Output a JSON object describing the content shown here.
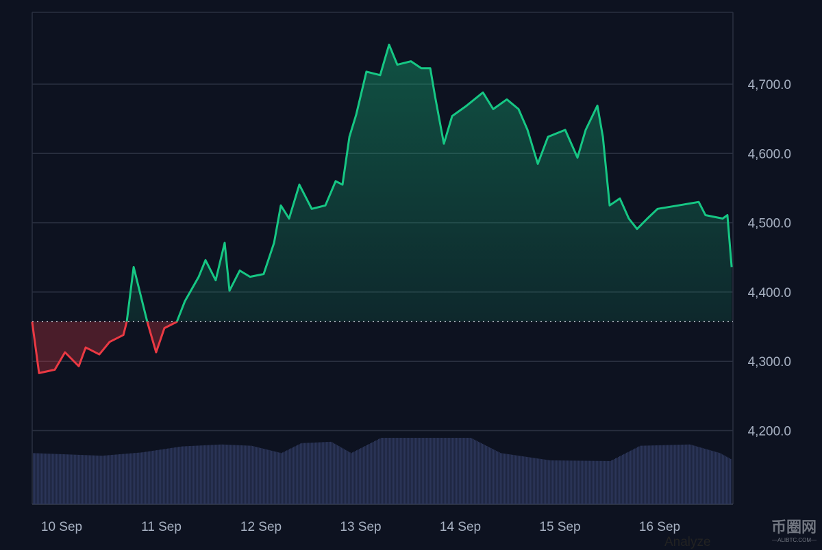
{
  "chart_data": {
    "type": "area",
    "title": "",
    "baseline": 4357.5,
    "colors": {
      "up": "#16c784",
      "down": "#ea3943",
      "volume": "#2b3558",
      "grid": "#2a3040"
    },
    "x_ticks": [
      {
        "day": 0,
        "label": "10 Sep"
      },
      {
        "day": 1,
        "label": "11 Sep"
      },
      {
        "day": 2,
        "label": "12 Sep"
      },
      {
        "day": 3,
        "label": "13 Sep"
      },
      {
        "day": 4,
        "label": "14 Sep"
      },
      {
        "day": 5,
        "label": "15 Sep"
      },
      {
        "day": 6,
        "label": "16 Sep"
      }
    ],
    "y_ticks": [
      {
        "value": 4200,
        "label": "4,200.0"
      },
      {
        "value": 4300,
        "label": "4,300.0"
      },
      {
        "value": 4400,
        "label": "4,400.0"
      },
      {
        "value": 4500,
        "label": "4,500.0"
      },
      {
        "value": 4600,
        "label": "4,600.0"
      },
      {
        "value": 4700,
        "label": "4,700.0"
      }
    ],
    "xlim": [
      -0.296,
      6.735
    ],
    "ylim": [
      4095,
      4810
    ],
    "price": [
      [
        -0.296,
        4357
      ],
      [
        -0.227,
        4283
      ],
      [
        -0.069,
        4288
      ],
      [
        0.034,
        4313
      ],
      [
        0.172,
        4293
      ],
      [
        0.241,
        4320
      ],
      [
        0.378,
        4310
      ],
      [
        0.481,
        4328
      ],
      [
        0.619,
        4338
      ],
      [
        0.653,
        4357
      ],
      [
        0.722,
        4436
      ],
      [
        0.79,
        4397
      ],
      [
        0.859,
        4357
      ],
      [
        0.948,
        4313
      ],
      [
        1.031,
        4348
      ],
      [
        1.155,
        4357
      ],
      [
        1.237,
        4387
      ],
      [
        1.375,
        4422
      ],
      [
        1.443,
        4446
      ],
      [
        1.546,
        4417
      ],
      [
        1.636,
        4471
      ],
      [
        1.684,
        4402
      ],
      [
        1.787,
        4431
      ],
      [
        1.89,
        4422
      ],
      [
        2.027,
        4426
      ],
      [
        2.131,
        4471
      ],
      [
        2.199,
        4525
      ],
      [
        2.282,
        4506
      ],
      [
        2.385,
        4555
      ],
      [
        2.509,
        4520
      ],
      [
        2.646,
        4525
      ],
      [
        2.749,
        4560
      ],
      [
        2.818,
        4555
      ],
      [
        2.887,
        4624
      ],
      [
        2.955,
        4656
      ],
      [
        3.058,
        4718
      ],
      [
        3.196,
        4713
      ],
      [
        3.285,
        4757
      ],
      [
        3.368,
        4728
      ],
      [
        3.505,
        4733
      ],
      [
        3.608,
        4723
      ],
      [
        3.698,
        4723
      ],
      [
        3.746,
        4683
      ],
      [
        3.835,
        4614
      ],
      [
        3.918,
        4654
      ],
      [
        4.055,
        4668
      ],
      [
        4.227,
        4688
      ],
      [
        4.33,
        4664
      ],
      [
        4.467,
        4678
      ],
      [
        4.584,
        4664
      ],
      [
        4.674,
        4634
      ],
      [
        4.777,
        4585
      ],
      [
        4.88,
        4624
      ],
      [
        5.052,
        4634
      ],
      [
        5.175,
        4594
      ],
      [
        5.258,
        4634
      ],
      [
        5.375,
        4669
      ],
      [
        5.43,
        4624
      ],
      [
        5.498,
        4525
      ],
      [
        5.601,
        4535
      ],
      [
        5.691,
        4506
      ],
      [
        5.773,
        4491
      ],
      [
        5.876,
        4506
      ],
      [
        5.979,
        4520
      ],
      [
        6.186,
        4525
      ],
      [
        6.392,
        4530
      ],
      [
        6.46,
        4511
      ],
      [
        6.632,
        4506
      ],
      [
        6.68,
        4511
      ],
      [
        6.722,
        4436
      ]
    ],
    "volume": [
      [
        -0.296,
        77
      ],
      [
        0.4,
        73
      ],
      [
        0.8,
        78
      ],
      [
        1.2,
        87
      ],
      [
        1.6,
        90
      ],
      [
        1.9,
        88
      ],
      [
        2.2,
        77
      ],
      [
        2.4,
        92
      ],
      [
        2.7,
        94
      ],
      [
        2.9,
        77
      ],
      [
        3.2,
        100
      ],
      [
        3.6,
        100
      ],
      [
        4.1,
        100
      ],
      [
        4.4,
        77
      ],
      [
        4.9,
        66
      ],
      [
        5.5,
        65
      ],
      [
        5.8,
        88
      ],
      [
        6.3,
        90
      ],
      [
        6.6,
        77
      ],
      [
        6.722,
        67
      ]
    ]
  },
  "watermark": {
    "name": "币圈网",
    "domain": "—ALIBTC.COM—"
  },
  "footer_text": "Analyze"
}
